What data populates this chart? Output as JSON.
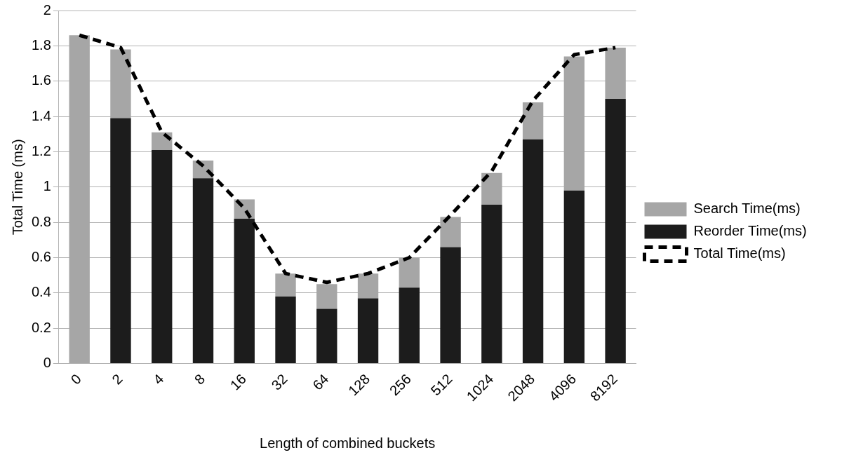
{
  "chart_data": {
    "type": "bar",
    "stacked": true,
    "xlabel": "Length of combined buckets",
    "ylabel": "Total Time (ms)",
    "categories": [
      "0",
      "2",
      "4",
      "8",
      "16",
      "32",
      "64",
      "128",
      "256",
      "512",
      "1024",
      "2048",
      "4096",
      "8192"
    ],
    "series": [
      {
        "name": "Reorder Time(ms)",
        "color": "#1c1c1c",
        "values": [
          0,
          1.39,
          1.21,
          1.05,
          0.82,
          0.38,
          0.31,
          0.37,
          0.43,
          0.66,
          0.9,
          1.27,
          0.98,
          1.5
        ]
      },
      {
        "name": "Search Time(ms)",
        "color": "#a6a6a6",
        "values": [
          1.86,
          0.39,
          0.1,
          0.1,
          0.11,
          0.13,
          0.14,
          0.14,
          0.17,
          0.17,
          0.18,
          0.21,
          0.76,
          0.29
        ]
      },
      {
        "name": "Total Time(ms)",
        "type": "line",
        "color": "#000000",
        "line_style": "dashed",
        "marker": "none",
        "values": [
          1.86,
          1.79,
          1.31,
          1.12,
          0.88,
          0.51,
          0.46,
          0.51,
          0.6,
          0.84,
          1.09,
          1.49,
          1.75,
          1.79
        ]
      }
    ],
    "ylim": [
      0,
      2
    ],
    "yticks": [
      0,
      0.2,
      0.4,
      0.6,
      0.8,
      1,
      1.2,
      1.4,
      1.6,
      1.8,
      2
    ],
    "grid": "y",
    "legend": "right"
  }
}
